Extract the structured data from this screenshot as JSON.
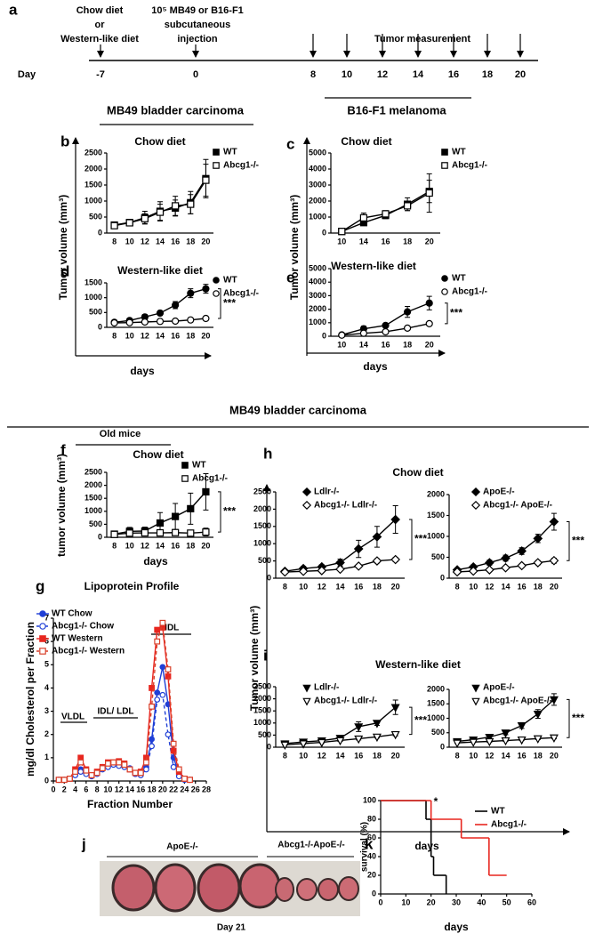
{
  "panel_labels": [
    "a",
    "b",
    "c",
    "d",
    "e",
    "f",
    "g",
    "h",
    "i",
    "j",
    "k"
  ],
  "timeline": {
    "diet": [
      "Chow diet",
      "or",
      "Western-like diet"
    ],
    "injection": [
      "10⁵ MB49 or B16-F1",
      "subcutaneous",
      "injection"
    ],
    "measurement": "Tumor measurement",
    "axis_label": "Day",
    "days": [
      -7,
      0,
      8,
      10,
      12,
      14,
      16,
      18,
      20
    ]
  },
  "headings": {
    "mb49_top": "MB49 bladder carcinoma",
    "b16": "B16-F1 melanoma",
    "mb49_mid": "MB49 bladder carcinoma",
    "old_mice": "Old mice"
  },
  "shared_axes": [
    {
      "y": "Tumor volume (mm³)",
      "x": "days"
    },
    {
      "y": "Tumor volume (mm³)",
      "x": "days"
    },
    {
      "y": "Tumor volume (mm³)",
      "x": "days"
    }
  ],
  "photo": {
    "groups": [
      "ApoE-/-",
      "Abcg1-/-ApoE-/-"
    ],
    "caption": "Day 21"
  },
  "chart_data": [
    {
      "type": "line",
      "title": "Chow diet",
      "categories": [
        "8",
        "10",
        "12",
        "14",
        "16",
        "18",
        "20"
      ],
      "ylim": [
        0,
        2500
      ],
      "yticks": [
        0,
        500,
        1000,
        1500,
        2000,
        2500
      ],
      "series": [
        {
          "name": "WT",
          "color": "#000000",
          "marker": "square",
          "filled": true,
          "values": [
            250,
            330,
            480,
            680,
            780,
            950,
            1700
          ],
          "errors": [
            60,
            80,
            200,
            300,
            250,
            350,
            600
          ]
        },
        {
          "name": "Abcg1-/-",
          "color": "#000000",
          "marker": "square",
          "filled": false,
          "values": [
            230,
            320,
            450,
            650,
            850,
            900,
            1650
          ],
          "errors": [
            50,
            70,
            150,
            250,
            300,
            300,
            500
          ]
        }
      ]
    },
    {
      "type": "line",
      "title": "Chow diet",
      "categories": [
        "10",
        "14",
        "16",
        "18",
        "20"
      ],
      "ylim": [
        0,
        5000
      ],
      "yticks": [
        0,
        1000,
        2000,
        3000,
        4000,
        5000
      ],
      "series": [
        {
          "name": "WT",
          "color": "#000000",
          "marker": "square",
          "filled": true,
          "values": [
            100,
            650,
            1100,
            1800,
            2600
          ],
          "errors": [
            50,
            150,
            200,
            400,
            700
          ]
        },
        {
          "name": "Abcg1-/-",
          "color": "#000000",
          "marker": "square",
          "filled": false,
          "values": [
            100,
            950,
            1200,
            1700,
            2500
          ],
          "errors": [
            50,
            300,
            200,
            300,
            1200
          ]
        }
      ]
    },
    {
      "type": "line",
      "title": "Western-like diet",
      "categories": [
        "8",
        "10",
        "12",
        "14",
        "16",
        "18",
        "20"
      ],
      "ylim": [
        0,
        1500
      ],
      "yticks": [
        0,
        500,
        1000,
        1500
      ],
      "annotation": "***",
      "series": [
        {
          "name": "WT",
          "color": "#000000",
          "marker": "circle",
          "filled": true,
          "values": [
            170,
            230,
            350,
            480,
            750,
            1150,
            1300
          ],
          "errors": [
            30,
            50,
            80,
            80,
            120,
            150,
            150
          ]
        },
        {
          "name": "Abcg1-/-",
          "color": "#000000",
          "marker": "circle",
          "filled": false,
          "values": [
            150,
            160,
            180,
            200,
            210,
            250,
            300
          ],
          "errors": [
            20,
            20,
            30,
            30,
            30,
            40,
            40
          ]
        }
      ]
    },
    {
      "type": "line",
      "title": "Western-like diet",
      "categories": [
        "10",
        "14",
        "16",
        "18",
        "20"
      ],
      "ylim": [
        0,
        5000
      ],
      "yticks": [
        0,
        1000,
        2000,
        3000,
        4000,
        5000
      ],
      "annotation": "***",
      "series": [
        {
          "name": "WT",
          "color": "#000000",
          "marker": "circle",
          "filled": true,
          "values": [
            100,
            550,
            800,
            1800,
            2450
          ],
          "errors": [
            50,
            200,
            150,
            400,
            500
          ]
        },
        {
          "name": "Abcg1-/-",
          "color": "#000000",
          "marker": "circle",
          "filled": false,
          "values": [
            80,
            220,
            330,
            600,
            930
          ],
          "errors": [
            30,
            50,
            60,
            80,
            100
          ]
        }
      ]
    },
    {
      "type": "line",
      "title": "Chow diet",
      "xlabel": "days",
      "ylabel": "tumor volume (mm³)",
      "categories": [
        "8",
        "10",
        "12",
        "14",
        "16",
        "18",
        "20"
      ],
      "ylim": [
        0,
        2500
      ],
      "yticks": [
        0,
        500,
        1000,
        1500,
        2000,
        2500
      ],
      "annotation": "***",
      "series": [
        {
          "name": "WT",
          "color": "#000000",
          "marker": "square",
          "filled": true,
          "values": [
            120,
            230,
            240,
            550,
            800,
            1100,
            1750
          ],
          "errors": [
            50,
            150,
            150,
            400,
            500,
            600,
            700
          ]
        },
        {
          "name": "Abcg1-/-",
          "color": "#000000",
          "marker": "square",
          "filled": false,
          "values": [
            110,
            160,
            170,
            170,
            180,
            160,
            200
          ],
          "errors": [
            40,
            60,
            80,
            60,
            80,
            60,
            150
          ]
        }
      ]
    },
    {
      "type": "line",
      "title": "Lipoprotein Profile",
      "xlabel": "Fraction Number",
      "ylabel": "mg/dl Cholesterol per Fraction",
      "annotations": [
        "VLDL",
        "IDL/ LDL",
        "HDL"
      ],
      "x": [
        1,
        2,
        3,
        4,
        5,
        6,
        7,
        8,
        9,
        10,
        11,
        12,
        13,
        14,
        15,
        16,
        17,
        18,
        19,
        20,
        21,
        22,
        23,
        24,
        25
      ],
      "xlim": [
        0,
        28
      ],
      "xticks": [
        0,
        2,
        4,
        6,
        8,
        10,
        12,
        14,
        16,
        18,
        20,
        22,
        24,
        26,
        28
      ],
      "ylim": [
        0,
        7
      ],
      "yticks": [
        0,
        1,
        2,
        3,
        4,
        5,
        6,
        7
      ],
      "series": [
        {
          "name": "WT Chow",
          "color": "#1f3fd6",
          "marker": "circle",
          "filled": true,
          "dashed": false,
          "values": [
            0.05,
            0.05,
            0.1,
            0.3,
            0.5,
            0.35,
            0.2,
            0.35,
            0.6,
            0.7,
            0.75,
            0.75,
            0.7,
            0.55,
            0.3,
            0.3,
            0.6,
            1.8,
            3.8,
            4.9,
            3.3,
            1.0,
            0.3,
            0.1,
            0.05
          ]
        },
        {
          "name": "Abcg1-/- Chow",
          "color": "#1f3fd6",
          "marker": "circle",
          "filled": false,
          "dashed": true,
          "values": [
            0.05,
            0.05,
            0.1,
            0.25,
            0.4,
            0.3,
            0.2,
            0.3,
            0.5,
            0.6,
            0.7,
            0.65,
            0.6,
            0.5,
            0.3,
            0.25,
            0.5,
            1.5,
            3.5,
            3.7,
            2.0,
            0.6,
            0.2,
            0.05,
            0.05
          ]
        },
        {
          "name": "WT Western",
          "color": "#e8261f",
          "marker": "square",
          "filled": true,
          "dashed": false,
          "values": [
            0.05,
            0.05,
            0.1,
            0.5,
            1.0,
            0.5,
            0.25,
            0.4,
            0.6,
            0.8,
            0.8,
            0.85,
            0.75,
            0.5,
            0.35,
            0.4,
            1.0,
            4.0,
            6.5,
            6.6,
            4.5,
            1.3,
            0.4,
            0.1,
            0.05
          ]
        },
        {
          "name": "Abcg1-/- Western",
          "color": "#d9412b",
          "marker": "square",
          "filled": false,
          "dashed": true,
          "values": [
            0.05,
            0.05,
            0.1,
            0.4,
            0.8,
            0.45,
            0.25,
            0.35,
            0.55,
            0.75,
            0.8,
            0.8,
            0.7,
            0.5,
            0.35,
            0.35,
            0.8,
            3.2,
            6.0,
            6.8,
            4.8,
            1.6,
            0.5,
            0.1,
            0.05
          ]
        }
      ]
    },
    {
      "type": "line",
      "title": "Chow diet",
      "categories": [
        "8",
        "10",
        "12",
        "14",
        "16",
        "18",
        "20"
      ],
      "ylim": [
        0,
        2500
      ],
      "yticks": [
        0,
        500,
        1000,
        1500,
        2000,
        2500
      ],
      "annotation": "***",
      "series": [
        {
          "name": "Ldlr-/-",
          "color": "#000000",
          "marker": "diamond",
          "filled": true,
          "values": [
            200,
            280,
            330,
            450,
            850,
            1200,
            1700
          ],
          "errors": [
            40,
            60,
            60,
            100,
            250,
            300,
            400
          ]
        },
        {
          "name": "Abcg1-/- Ldlr-/-",
          "color": "#000000",
          "marker": "diamond",
          "filled": false,
          "values": [
            180,
            200,
            220,
            260,
            350,
            500,
            540
          ],
          "errors": [
            30,
            30,
            40,
            40,
            50,
            60,
            60
          ]
        }
      ]
    },
    {
      "type": "line",
      "categories": [
        "8",
        "10",
        "12",
        "14",
        "16",
        "18",
        "20"
      ],
      "ylim": [
        0,
        2000
      ],
      "yticks": [
        0,
        500,
        1000,
        1500,
        2000
      ],
      "annotation": "***",
      "series": [
        {
          "name": "ApoE-/-",
          "color": "#000000",
          "marker": "diamond",
          "filled": true,
          "values": [
            200,
            270,
            370,
            480,
            650,
            950,
            1350
          ],
          "errors": [
            40,
            50,
            60,
            70,
            80,
            100,
            200
          ]
        },
        {
          "name": "Abcg1-/- ApoE-/-",
          "color": "#000000",
          "marker": "diamond",
          "filled": false,
          "values": [
            150,
            170,
            200,
            250,
            300,
            370,
            420
          ],
          "errors": [
            20,
            30,
            30,
            30,
            40,
            50,
            60
          ]
        }
      ]
    },
    {
      "type": "line",
      "title": "Western-like diet",
      "categories": [
        "8",
        "10",
        "12",
        "14",
        "16",
        "18",
        "20"
      ],
      "ylim": [
        0,
        2500
      ],
      "yticks": [
        0,
        500,
        1000,
        1500,
        2000,
        2500
      ],
      "annotation": "***",
      "series": [
        {
          "name": "Ldlr-/-",
          "color": "#000000",
          "marker": "triangle",
          "filled": true,
          "values": [
            150,
            220,
            270,
            380,
            850,
            1000,
            1650
          ],
          "errors": [
            40,
            50,
            60,
            80,
            200,
            100,
            300
          ]
        },
        {
          "name": "Abcg1-/- Ldlr-/-",
          "color": "#000000",
          "marker": "triangle",
          "filled": false,
          "values": [
            100,
            150,
            200,
            280,
            350,
            430,
            530
          ],
          "errors": [
            20,
            30,
            30,
            40,
            50,
            50,
            60
          ]
        }
      ]
    },
    {
      "type": "line",
      "categories": [
        "8",
        "10",
        "12",
        "14",
        "16",
        "18",
        "20"
      ],
      "ylim": [
        0,
        2000
      ],
      "yticks": [
        0,
        500,
        1000,
        1500,
        2000
      ],
      "annotation": "***",
      "series": [
        {
          "name": "ApoE-/-",
          "color": "#000000",
          "marker": "triangle",
          "filled": true,
          "values": [
            200,
            260,
            350,
            500,
            750,
            1150,
            1650
          ],
          "errors": [
            40,
            50,
            60,
            70,
            100,
            150,
            200
          ]
        },
        {
          "name": "Abcg1-/- ApoE-/-",
          "color": "#000000",
          "marker": "triangle",
          "filled": false,
          "values": [
            150,
            180,
            200,
            230,
            260,
            300,
            330
          ],
          "errors": [
            20,
            20,
            30,
            30,
            30,
            40,
            40
          ]
        }
      ]
    },
    {
      "type": "line",
      "step": true,
      "xlabel": "days",
      "ylabel": "survival (%)",
      "annotation": "*",
      "xlim": [
        0,
        60
      ],
      "xticks": [
        0,
        10,
        20,
        30,
        40,
        50,
        60
      ],
      "ylim": [
        0,
        100
      ],
      "yticks": [
        0,
        20,
        40,
        60,
        80,
        100
      ],
      "series": [
        {
          "name": "WT",
          "color": "#000000",
          "x": [
            0,
            18,
            20,
            21,
            26
          ],
          "values": [
            100,
            80,
            40,
            20,
            0
          ]
        },
        {
          "name": "Abcg1-/-",
          "color": "#e8261f",
          "x": [
            0,
            20,
            32,
            43,
            50
          ],
          "values": [
            100,
            80,
            60,
            20,
            20
          ]
        }
      ]
    }
  ]
}
